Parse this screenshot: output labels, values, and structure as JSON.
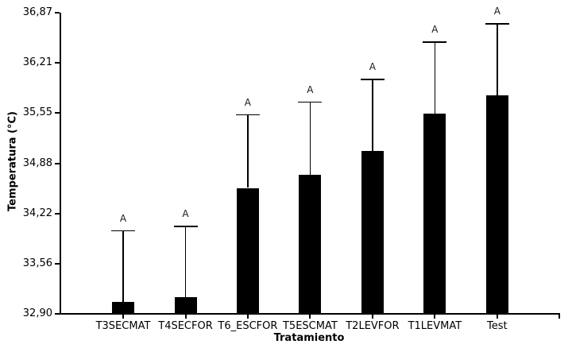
{
  "chart_data": {
    "type": "bar",
    "title": "",
    "categories": [
      "T3SECMAT",
      "T4SECFOR",
      "T6_ESCFOR",
      "T5ESCMAT",
      "T2LEVFOR",
      "T1LEVMAT",
      "Test"
    ],
    "values": [
      33.06,
      33.12,
      34.56,
      34.73,
      35.05,
      35.54,
      35.78
    ],
    "error_upper": [
      33.99,
      34.05,
      35.52,
      35.69,
      35.99,
      36.48,
      36.72
    ],
    "sig_labels": [
      "A",
      "A",
      "A",
      "A",
      "A",
      "A",
      "A"
    ],
    "xlabel": "Tratamiento",
    "ylabel": "Temperatura (°C)",
    "ylim": [
      32.9,
      36.87
    ],
    "yticks": [
      36.87,
      36.21,
      35.55,
      34.88,
      34.22,
      33.56,
      32.9
    ],
    "ytick_labels": [
      "36,87",
      "36,21",
      "35,55",
      "34,88",
      "34,22",
      "33,56",
      "32,90"
    ],
    "decimal_separator": ",",
    "bar_color": "#000000",
    "axis_color": "#000000",
    "text_color": "#000000",
    "background": "#ffffff",
    "grid": "off",
    "legend": "none"
  }
}
